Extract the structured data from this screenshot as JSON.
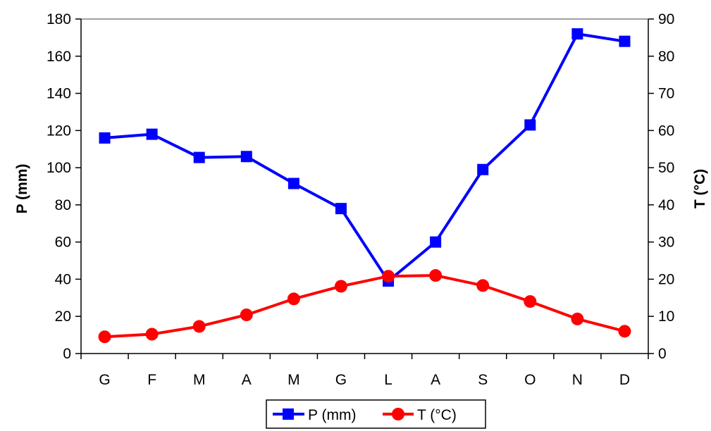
{
  "chart_data": {
    "type": "line",
    "title": "",
    "categories": [
      "G",
      "F",
      "M",
      "A",
      "M",
      "G",
      "L",
      "A",
      "S",
      "O",
      "N",
      "D"
    ],
    "series": [
      {
        "name": "P (mm)",
        "axis": "left",
        "color": "#0000ff",
        "marker": "square",
        "values": [
          116,
          118,
          105.5,
          106,
          91.5,
          78,
          39,
          60,
          99,
          123,
          172,
          168
        ]
      },
      {
        "name": "T (°C)",
        "axis": "right",
        "color": "#ff0000",
        "marker": "circle",
        "values": [
          4.5,
          5.2,
          7.3,
          10.4,
          14.7,
          18.1,
          20.8,
          21,
          18.3,
          14,
          9.3,
          6
        ]
      }
    ],
    "ylabel": "P (mm)",
    "y2label": "T (°C)",
    "ylim": [
      0,
      180
    ],
    "y2lim": [
      0,
      90
    ],
    "yticks": [
      "0",
      "20",
      "40",
      "60",
      "80",
      "100",
      "120",
      "140",
      "160",
      "180"
    ],
    "y2ticks": [
      "0",
      "10",
      "20",
      "30",
      "40",
      "50",
      "60",
      "70",
      "80",
      "90"
    ],
    "grid": false,
    "legend_position": "bottom-center"
  }
}
